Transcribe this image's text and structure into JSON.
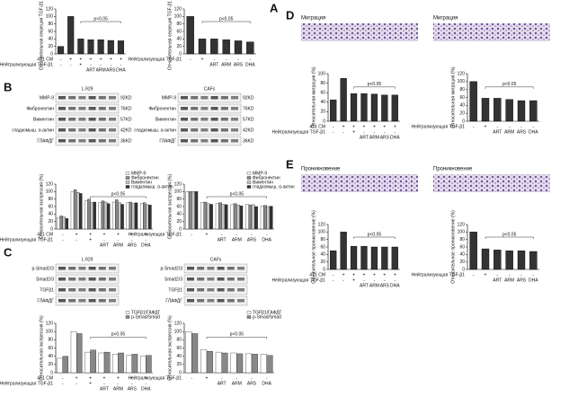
{
  "figure": {
    "panels": [
      "A",
      "B",
      "C",
      "D",
      "E"
    ],
    "section_titles": [
      "Миграция",
      "Миграция",
      "Проникновение",
      "Проникновение"
    ],
    "blots": [
      {
        "title": "L-929",
        "rows": [
          {
            "label": "MMP-9",
            "size": "92KD"
          },
          {
            "label": "Фибронектин",
            "size": "76KD"
          },
          {
            "label": "Виментин",
            "size": "57KD"
          },
          {
            "label": "гладкомыш. α-актин",
            "size": "42KD"
          },
          {
            "label": "ГЛАФДГ",
            "size": "36KD"
          }
        ]
      },
      {
        "title": "CAFs",
        "rows": [
          {
            "label": "MMP-9",
            "size": "92KD"
          },
          {
            "label": "Фибронектин",
            "size": "76KD"
          },
          {
            "label": "Виментин",
            "size": "57KD"
          },
          {
            "label": "гладкомыш. α-актин",
            "size": "42KD"
          },
          {
            "label": "ГЛАФДГ",
            "size": "36KD"
          }
        ]
      },
      {
        "title": "L-929",
        "rows": [
          {
            "label": "p-Smad2/3"
          },
          {
            "label": "Smad2/3"
          },
          {
            "label": "TGFβ1"
          },
          {
            "label": "ГЛАФДГ"
          }
        ]
      },
      {
        "title": "CAFs",
        "rows": [
          {
            "label": "p-Smad2/3"
          },
          {
            "label": "Smad2/3"
          },
          {
            "label": "TGFβ1"
          },
          {
            "label": "ГЛАФДГ"
          }
        ]
      }
    ]
  },
  "chart_data": [
    {
      "type": "bar",
      "y_label": "Относительная секреция TGF-β1 (%)",
      "annotation": "p<0.05",
      "color": "#333333",
      "categories": [
        null,
        null,
        null,
        "ART",
        "ARM",
        "ARS",
        "DHA"
      ],
      "values": [
        20,
        100,
        40,
        38,
        38,
        36,
        35
      ],
      "ylim": [
        0,
        120
      ],
      "yticks": [
        0,
        20,
        40,
        60,
        80,
        100,
        120
      ],
      "treatments": [
        {
          "label": "4T1 CM",
          "signs": [
            "-",
            "+",
            "+",
            "+",
            "+",
            "+",
            "+"
          ]
        },
        {
          "label": "Нейтрализующая TGF-β1",
          "signs": [
            "-",
            "-",
            "+",
            "-",
            "-",
            "-",
            "-"
          ]
        }
      ]
    },
    {
      "type": "bar",
      "y_label": "Относительная секреция TGF-β1 (%)",
      "annotation": "p<0.05",
      "color": "#333333",
      "categories": [
        null,
        null,
        "ART",
        "ARM",
        "ARS",
        "DHA"
      ],
      "values": [
        100,
        40,
        40,
        38,
        35,
        32
      ],
      "ylim": [
        0,
        120
      ],
      "yticks": [
        0,
        20,
        40,
        60,
        80,
        100,
        120
      ],
      "treatments": [
        {
          "label": "Нейтрализующая TGF-β1",
          "signs": [
            "-",
            "+",
            "-",
            "-",
            "-",
            "-"
          ]
        }
      ]
    },
    {
      "type": "grouped_bar",
      "y_label": "Относительная экспрессия (%)",
      "annotation": "p<0.05",
      "categories": [
        null,
        null,
        null,
        "ART",
        "ARM",
        "ARS",
        "DHA"
      ],
      "series": [
        {
          "name": "MMP-9",
          "color": "#ffffff",
          "values": [
            30,
            100,
            75,
            70,
            72,
            70,
            68
          ]
        },
        {
          "name": "Фибронектин",
          "color": "#888888",
          "values": [
            35,
            105,
            80,
            75,
            78,
            72,
            70
          ]
        },
        {
          "name": "Виментин",
          "color": "#c8c8c8",
          "values": [
            32,
            98,
            70,
            72,
            70,
            68,
            65
          ]
        },
        {
          "name": "гладкомыш. α-актин",
          "color": "#333333",
          "values": [
            28,
            95,
            72,
            68,
            66,
            70,
            64
          ]
        }
      ],
      "ylim": [
        0,
        120
      ],
      "yticks": [
        0,
        20,
        40,
        60,
        80,
        100,
        120
      ],
      "treatments": [
        {
          "label": "4T1 CM",
          "signs": [
            "-",
            "+",
            "+",
            "+",
            "+",
            "+",
            "+"
          ]
        },
        {
          "label": "Нейтрализующая TGF-β1",
          "signs": [
            "-",
            "-",
            "+",
            "-",
            "-",
            "-",
            "-"
          ]
        }
      ]
    },
    {
      "type": "grouped_bar",
      "y_label": "Относительная экспрессия (%)",
      "annotation": "p<0.05",
      "categories": [
        null,
        null,
        "ART",
        "ARM",
        "ARS",
        "DHA"
      ],
      "series": [
        {
          "name": "MMP-9",
          "color": "#ffffff",
          "values": [
            100,
            70,
            68,
            65,
            66,
            62
          ]
        },
        {
          "name": "Фибронектин",
          "color": "#888888",
          "values": [
            100,
            72,
            70,
            68,
            64,
            63
          ]
        },
        {
          "name": "Виментин",
          "color": "#c8c8c8",
          "values": [
            100,
            68,
            66,
            64,
            65,
            60
          ]
        },
        {
          "name": "гладкомыш. α-актин",
          "color": "#333333",
          "values": [
            100,
            66,
            65,
            62,
            60,
            61
          ]
        }
      ],
      "ylim": [
        0,
        120
      ],
      "yticks": [
        0,
        20,
        40,
        60,
        80,
        100,
        120
      ],
      "treatments": [
        {
          "label": "Нейтрализующая TGF-β1",
          "signs": [
            "-",
            "+",
            "-",
            "-",
            "-",
            "-"
          ]
        }
      ]
    },
    {
      "type": "grouped_bar",
      "y_label": "Относительная экспрессия (%)",
      "annotation": "p<0.05",
      "categories": [
        null,
        null,
        null,
        "ART",
        "ARM",
        "ARS",
        "DHA"
      ],
      "series": [
        {
          "name": "TGFβ1/ГАФДГ",
          "color": "#ffffff",
          "values": [
            35,
            100,
            50,
            48,
            45,
            42,
            40
          ]
        },
        {
          "name": "p-Smad/Smad",
          "color": "#888888",
          "values": [
            40,
            95,
            55,
            50,
            48,
            45,
            42
          ]
        }
      ],
      "ylim": [
        0,
        120
      ],
      "yticks": [
        0,
        20,
        40,
        60,
        80,
        100,
        120
      ],
      "treatments": [
        {
          "label": "4T1 CM",
          "signs": [
            "-",
            "+",
            "+",
            "+",
            "+",
            "+",
            "+"
          ]
        },
        {
          "label": "Нейтрализующая TGF-β1",
          "signs": [
            "-",
            "-",
            "+",
            "-",
            "-",
            "-",
            "-"
          ]
        }
      ]
    },
    {
      "type": "grouped_bar",
      "y_label": "Относительная экспрессия (%)",
      "annotation": "p<0.05",
      "categories": [
        null,
        null,
        "ART",
        "ARM",
        "ARS",
        "DHA"
      ],
      "series": [
        {
          "name": "TGFβ1/ГАФДГ",
          "color": "#ffffff",
          "values": [
            100,
            55,
            50,
            48,
            46,
            45
          ]
        },
        {
          "name": "p-Smad/Smad",
          "color": "#888888",
          "values": [
            95,
            52,
            48,
            46,
            45,
            42
          ]
        }
      ],
      "ylim": [
        0,
        120
      ],
      "yticks": [
        0,
        20,
        40,
        60,
        80,
        100,
        120
      ],
      "treatments": [
        {
          "label": "Нейтрализующая TGF-β1",
          "signs": [
            "-",
            "+",
            "-",
            "-",
            "-",
            "-"
          ]
        }
      ]
    },
    {
      "type": "bar",
      "y_label": "Относительная миграция (%)",
      "annotation": "p<0.05",
      "color": "#333333",
      "categories": [
        null,
        null,
        null,
        "ART",
        "ARM",
        "ARS",
        "DHA"
      ],
      "values": [
        45,
        90,
        58,
        58,
        57,
        55,
        55
      ],
      "ylim": [
        0,
        100
      ],
      "yticks": [
        0,
        20,
        40,
        60,
        80,
        100
      ],
      "treatments": [
        {
          "label": "4T1 CM",
          "signs": [
            "-",
            "+",
            "+",
            "+",
            "+",
            "+",
            "+"
          ]
        },
        {
          "label": "Нейтрализующая TGF-β1",
          "signs": [
            "-",
            "-",
            "+",
            "-",
            "-",
            "-",
            "-"
          ]
        }
      ]
    },
    {
      "type": "bar",
      "y_label": "Относительная миграция (%)",
      "annotation": "p<0.05",
      "color": "#333333",
      "categories": [
        null,
        null,
        "ART",
        "ARM",
        "ARS",
        "DHA"
      ],
      "values": [
        100,
        58,
        58,
        55,
        52,
        52
      ],
      "ylim": [
        0,
        120
      ],
      "yticks": [
        0,
        20,
        40,
        60,
        80,
        100,
        120
      ],
      "treatments": [
        {
          "label": "Нейтрализующая TGF-β1",
          "signs": [
            "-",
            "+",
            "-",
            "-",
            "-",
            "-"
          ]
        }
      ]
    },
    {
      "type": "bar",
      "y_label": "Относительное проникновение (%)",
      "annotation": "p<0.05",
      "color": "#333333",
      "categories": [
        null,
        null,
        null,
        "ART",
        "ARM",
        "ARS",
        "DHA"
      ],
      "values": [
        50,
        100,
        62,
        62,
        60,
        60,
        60
      ],
      "ylim": [
        0,
        120
      ],
      "yticks": [
        0,
        20,
        40,
        60,
        80,
        100,
        120
      ],
      "treatments": [
        {
          "label": "4T1 CM",
          "signs": [
            "-",
            "+",
            "+",
            "+",
            "+",
            "+",
            "+"
          ]
        },
        {
          "label": "Нейтрализующая TGF-β1",
          "signs": [
            "-",
            "-",
            "+",
            "-",
            "-",
            "-",
            "-"
          ]
        }
      ]
    },
    {
      "type": "bar",
      "y_label": "Относительное проникновение (%)",
      "annotation": "p<0.05",
      "color": "#333333",
      "categories": [
        null,
        null,
        "ART",
        "ARM",
        "ARS",
        "DHA"
      ],
      "values": [
        100,
        55,
        52,
        50,
        50,
        48
      ],
      "ylim": [
        0,
        120
      ],
      "yticks": [
        0,
        20,
        40,
        60,
        80,
        100,
        120
      ],
      "treatments": [
        {
          "label": "Нейтрализующая TGF-β1",
          "signs": [
            "-",
            "+",
            "-",
            "-",
            "-",
            "-"
          ]
        }
      ]
    }
  ]
}
